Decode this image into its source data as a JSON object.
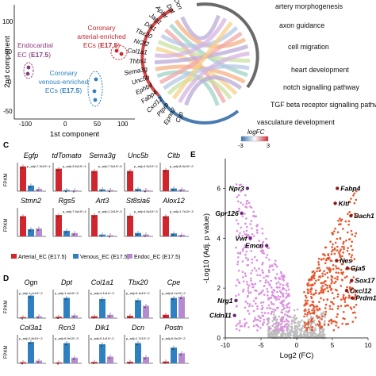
{
  "panel_labels": {
    "c": "C",
    "d": "D",
    "e": "E"
  },
  "colors": {
    "arterial": "#d0262e",
    "venous": "#2f80c1",
    "endocardial": "#8a3a7c",
    "volcano_up": "#e8552b",
    "volcano_down": "#dc8ee0",
    "volcano_ns": "#bdbdbd"
  },
  "pca": {
    "xlabel": "1st component",
    "ylabel": "2nd component",
    "ticks_x": [
      "-100",
      "0",
      "50",
      "100"
    ],
    "ticks_y": [
      "100",
      "50",
      "0",
      "-50"
    ],
    "groups": [
      {
        "name": "Endocardial EC",
        "stage": "E17.5",
        "line1": "Endocardial",
        "line2": "EC (",
        "close": ")"
      },
      {
        "name": "Coronary arterial-enriched ECs",
        "stage": "E17.5",
        "line1": "Coronary",
        "line2": "arterial-enriched",
        "line3": "ECs (",
        "close": ")"
      },
      {
        "name": "Coronary venous-enriched ECs",
        "stage": "E17.5",
        "line1": "Coronary",
        "line2": "venous-enriched",
        "line3": "ECs (",
        "close": ")"
      }
    ]
  },
  "chord": {
    "genes": [
      "Dcn",
      "Dpt",
      "Aplnr",
      "Jag1",
      "Dlk1",
      "Tbx20",
      "Nr2f2",
      "Col1a1",
      "Thbs1",
      "Sema3g",
      "Unc5b",
      "Ephb4",
      "Fabp4",
      "Cxcl12",
      "Ptprb",
      "Epnn2",
      "Cyp"
    ],
    "terms": [
      "artery morphogenesis",
      "axon guidance",
      "cell migration",
      "heart development",
      "notch signalling pathway",
      "TGF beta receptor signalling pathway",
      "vasculature development"
    ],
    "legend_title": "logFC",
    "legend_min": "-3",
    "legend_max": "3"
  },
  "bar_legend": {
    "arterial": "Arterial_EC (E17.5)",
    "venous": "Venous_EC (E17.5)",
    "endo": "Endoc_EC (E17.5)"
  },
  "ylabel_bar": "FPKM",
  "chart_data": [
    {
      "type": "bar",
      "panel": "C",
      "series_names": [
        "Arterial_EC (E17.5)",
        "Venous_EC (E17.5)",
        "Endoc_EC (E17.5)"
      ],
      "genes": [
        {
          "name": "Egfp",
          "values": [
            1100,
            250,
            100
          ],
          "pval": "p_adj=7.3x10^-4"
        },
        {
          "name": "tdTomato",
          "values": [
            1000,
            50,
            40
          ],
          "pval": "p_adj=3.6x10^-4"
        },
        {
          "name": "Sema3g",
          "values": [
            900,
            80,
            50
          ],
          "pval": "p_adj=7.5x10^-6"
        },
        {
          "name": "Unc5b",
          "values": [
            900,
            100,
            50
          ],
          "pval": "p_adj=4.5x10^-2"
        },
        {
          "name": "Cltb",
          "values": [
            950,
            120,
            80
          ],
          "pval": "p_adj=8.5x10^-2"
        },
        {
          "name": "Stmn2",
          "values": [
            900,
            320,
            350
          ],
          "pval": ""
        },
        {
          "name": "Rgs5",
          "values": [
            950,
            250,
            150
          ],
          "pval": "p_adj=7.5x10^-4"
        },
        {
          "name": "Art3",
          "values": [
            950,
            80,
            50
          ],
          "pval": "p_adj=1.2x10^-3"
        },
        {
          "name": "St8sia6",
          "values": [
            920,
            150,
            80
          ],
          "pval": "p_adj=4.6x10^-3"
        },
        {
          "name": "Alox12",
          "values": [
            900,
            130,
            70
          ],
          "pval": "p_adj=1.7x10^-3"
        }
      ]
    },
    {
      "type": "bar",
      "panel": "D",
      "series_names": [
        "Arterial_EC (E17.5)",
        "Venous_EC (E17.5)",
        "Endoc_EC (E17.5)"
      ],
      "genes": [
        {
          "name": "Ogn",
          "values": [
            40,
            1000,
            80
          ],
          "pval": "p_adj=1.1x10^-2"
        },
        {
          "name": "Dpt",
          "values": [
            60,
            900,
            120
          ],
          "pval": "p_adj=1.4x10^-3"
        },
        {
          "name": "Col1a1",
          "values": [
            80,
            850,
            150
          ],
          "pval": "p_adj=4.1x10^-3"
        },
        {
          "name": "Tbx20",
          "values": [
            100,
            800,
            550
          ],
          "pval": "p_adj=5.4x10^-2"
        },
        {
          "name": "Cpe",
          "values": [
            150,
            900,
            950
          ],
          "pval": "p_adj=6.1x10^-2"
        },
        {
          "name": "Col3a1",
          "values": [
            50,
            950,
            120
          ],
          "pval": "p_adj=2.6x10^-2"
        },
        {
          "name": "Rcn3",
          "values": [
            40,
            900,
            250
          ],
          "pval": "p_adj=6.9x10^-3"
        },
        {
          "name": "Dlk1",
          "values": [
            60,
            850,
            300
          ],
          "pval": "p_adj=5.1x10^-2"
        },
        {
          "name": "Dcn",
          "values": [
            70,
            900,
            280
          ],
          "pval": "p_adj=1.7x10^-2"
        },
        {
          "name": "Postn",
          "values": [
            80,
            700,
            450
          ],
          "pval": "p_adj=6.5x10^-2"
        }
      ]
    },
    {
      "type": "scatter",
      "panel": "E",
      "xlabel": "Log2 (FC)",
      "ylabel": "-Log10 (Adj. p value)",
      "xlim": [
        -10,
        10
      ],
      "ylim": [
        0,
        7
      ],
      "xticks": [
        "-10",
        "-5",
        "0",
        "5",
        "10"
      ],
      "yticks": [
        "0",
        "2",
        "4",
        "6"
      ],
      "labeled_points": [
        {
          "label": "Npr3",
          "x": -6.9,
          "y": 6.0
        },
        {
          "label": "Fabp4",
          "x": 5.7,
          "y": 6.0
        },
        {
          "label": "Kitl",
          "x": 5.4,
          "y": 5.4
        },
        {
          "label": "Dach1",
          "x": 7.6,
          "y": 4.9
        },
        {
          "label": "Gpr126",
          "x": -7.7,
          "y": 5.0
        },
        {
          "label": "Vwf",
          "x": -6.5,
          "y": 4.0
        },
        {
          "label": "Emcn",
          "x": -4.2,
          "y": 3.7
        },
        {
          "label": "Nes",
          "x": 5.6,
          "y": 3.1
        },
        {
          "label": "Gja5",
          "x": 7.1,
          "y": 2.8
        },
        {
          "label": "Sox17",
          "x": 7.7,
          "y": 2.3
        },
        {
          "label": "Cxcl12",
          "x": 7.0,
          "y": 1.9
        },
        {
          "label": "Prdm1",
          "x": 7.8,
          "y": 1.6
        },
        {
          "label": "Nrg1",
          "x": -8.5,
          "y": 1.5
        },
        {
          "label": "Cldn11",
          "x": -8.7,
          "y": 0.9
        }
      ]
    }
  ]
}
